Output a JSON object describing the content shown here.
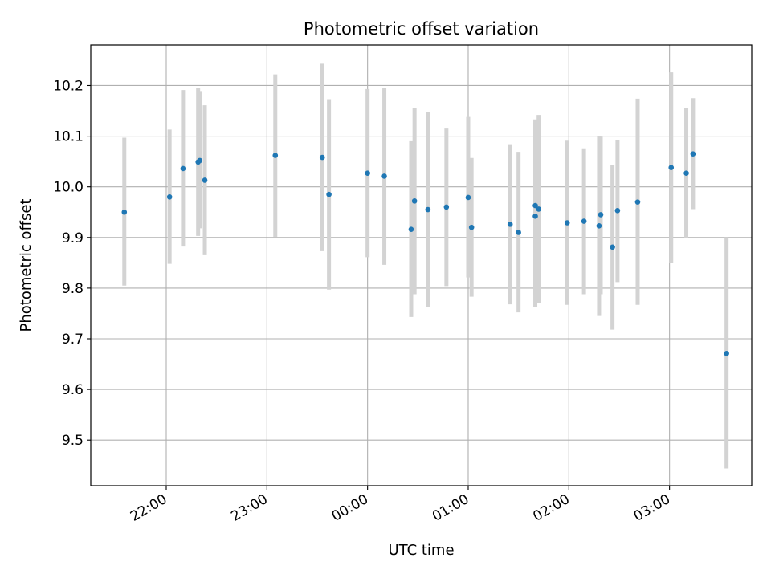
{
  "chart_data": {
    "type": "scatter",
    "title": "Photometric offset variation",
    "xlabel": "UTC time",
    "ylabel": "Photometric offset",
    "x_tick_labels": [
      "22:00",
      "23:00",
      "00:00",
      "01:00",
      "02:00",
      "03:00"
    ],
    "y_tick_labels": [
      "9.5",
      "9.6",
      "9.7",
      "9.8",
      "9.9",
      "10.0",
      "10.1",
      "10.2"
    ],
    "y_ticks": [
      9.5,
      9.6,
      9.7,
      9.8,
      9.9,
      10.0,
      10.1,
      10.2
    ],
    "xlim": [
      "21:15",
      "03:49"
    ],
    "ylim": [
      9.41,
      10.28
    ],
    "grid": true,
    "colors": {
      "point": "#1f77b4",
      "errorbar": "#d3d3d3",
      "grid": "#b0b0b0"
    },
    "series": [
      {
        "points": [
          {
            "x": "21:35",
            "y": 9.95,
            "ylow": 9.805,
            "yhigh": 10.097
          },
          {
            "x": "22:02",
            "y": 9.98,
            "ylow": 9.848,
            "yhigh": 10.113
          },
          {
            "x": "22:10",
            "y": 10.036,
            "ylow": 9.882,
            "yhigh": 10.191
          },
          {
            "x": "22:19",
            "y": 10.049,
            "ylow": 9.903,
            "yhigh": 10.195
          },
          {
            "x": "22:20",
            "y": 10.052,
            "ylow": 9.918,
            "yhigh": 10.189
          },
          {
            "x": "22:23",
            "y": 10.013,
            "ylow": 9.865,
            "yhigh": 10.161
          },
          {
            "x": "23:05",
            "y": 10.062,
            "ylow": 9.901,
            "yhigh": 10.222
          },
          {
            "x": "23:33",
            "y": 10.058,
            "ylow": 9.873,
            "yhigh": 10.243
          },
          {
            "x": "23:37",
            "y": 9.985,
            "ylow": 9.797,
            "yhigh": 10.173
          },
          {
            "x": "00:00",
            "y": 10.027,
            "ylow": 9.861,
            "yhigh": 10.193
          },
          {
            "x": "00:10",
            "y": 10.021,
            "ylow": 9.846,
            "yhigh": 10.195
          },
          {
            "x": "00:26",
            "y": 9.916,
            "ylow": 9.743,
            "yhigh": 10.09
          },
          {
            "x": "00:28",
            "y": 9.972,
            "ylow": 9.788,
            "yhigh": 10.156
          },
          {
            "x": "00:36",
            "y": 9.955,
            "ylow": 9.763,
            "yhigh": 10.147
          },
          {
            "x": "00:47",
            "y": 9.96,
            "ylow": 9.804,
            "yhigh": 10.115
          },
          {
            "x": "01:00",
            "y": 9.979,
            "ylow": 9.821,
            "yhigh": 10.138
          },
          {
            "x": "01:02",
            "y": 9.92,
            "ylow": 9.783,
            "yhigh": 10.057
          },
          {
            "x": "01:25",
            "y": 9.926,
            "ylow": 9.768,
            "yhigh": 10.084
          },
          {
            "x": "01:30",
            "y": 9.91,
            "ylow": 9.752,
            "yhigh": 10.069
          },
          {
            "x": "01:40",
            "y": 9.942,
            "ylow": 9.763,
            "yhigh": 10.126
          },
          {
            "x": "01:40",
            "y": 9.963,
            "ylow": 9.785,
            "yhigh": 10.133
          },
          {
            "x": "01:42",
            "y": 9.956,
            "ylow": 9.77,
            "yhigh": 10.142
          },
          {
            "x": "01:59",
            "y": 9.929,
            "ylow": 9.767,
            "yhigh": 10.091
          },
          {
            "x": "02:09",
            "y": 9.932,
            "ylow": 9.788,
            "yhigh": 10.076
          },
          {
            "x": "02:18",
            "y": 9.923,
            "ylow": 9.745,
            "yhigh": 10.101
          },
          {
            "x": "02:19",
            "y": 9.945,
            "ylow": 9.788,
            "yhigh": 10.099
          },
          {
            "x": "02:26",
            "y": 9.881,
            "ylow": 9.718,
            "yhigh": 10.043
          },
          {
            "x": "02:29",
            "y": 9.953,
            "ylow": 9.812,
            "yhigh": 10.093
          },
          {
            "x": "02:41",
            "y": 9.97,
            "ylow": 9.767,
            "yhigh": 10.174
          },
          {
            "x": "03:01",
            "y": 10.038,
            "ylow": 9.85,
            "yhigh": 10.226
          },
          {
            "x": "03:10",
            "y": 10.027,
            "ylow": 9.898,
            "yhigh": 10.156
          },
          {
            "x": "03:14",
            "y": 10.065,
            "ylow": 9.956,
            "yhigh": 10.175
          },
          {
            "x": "03:34",
            "y": 9.671,
            "ylow": 9.444,
            "yhigh": 9.9
          }
        ]
      }
    ]
  }
}
